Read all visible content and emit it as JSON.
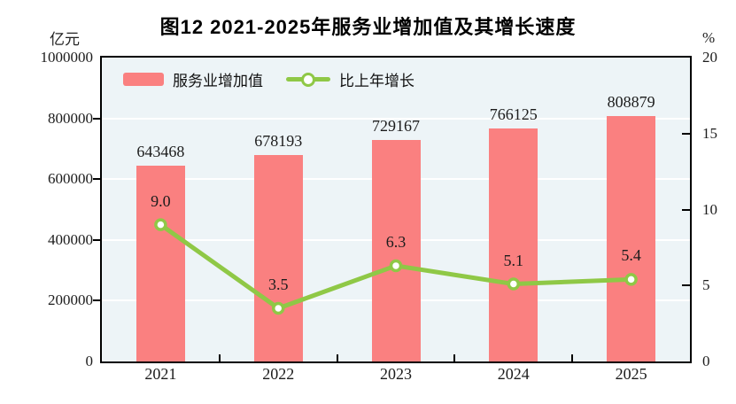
{
  "title": "图12  2021-2025年服务业增加值及其增长速度",
  "chart_data": {
    "type": "bar",
    "subtype": "bar+line-combo",
    "categories": [
      "2021",
      "2022",
      "2023",
      "2024",
      "2025"
    ],
    "series": [
      {
        "name": "服务业增加值",
        "type": "bar",
        "axis": "left",
        "color": "#FA8080",
        "values": [
          643468,
          678193,
          729167,
          766125,
          808879
        ],
        "labels": [
          "643468",
          "678193",
          "729167",
          "766125",
          "808879"
        ]
      },
      {
        "name": "比上年增长",
        "type": "line",
        "axis": "right",
        "color": "#8FC846",
        "marker": "white-circle",
        "values": [
          9.0,
          3.5,
          6.3,
          5.1,
          5.4
        ],
        "labels": [
          "9.0",
          "3.5",
          "6.3",
          "5.1",
          "5.4"
        ]
      }
    ],
    "left_axis": {
      "unit": "亿元",
      "min": 0,
      "max": 1000000,
      "ticks": [
        0,
        200000,
        400000,
        600000,
        800000,
        1000000
      ]
    },
    "right_axis": {
      "unit": "%",
      "min": 0,
      "max": 20,
      "ticks": [
        0,
        5,
        10,
        15,
        20
      ]
    },
    "grid": "horizontal",
    "grid_color": "#ffffff",
    "plot_background": "#EDF4F7",
    "legend_position": "top-left-inside"
  }
}
